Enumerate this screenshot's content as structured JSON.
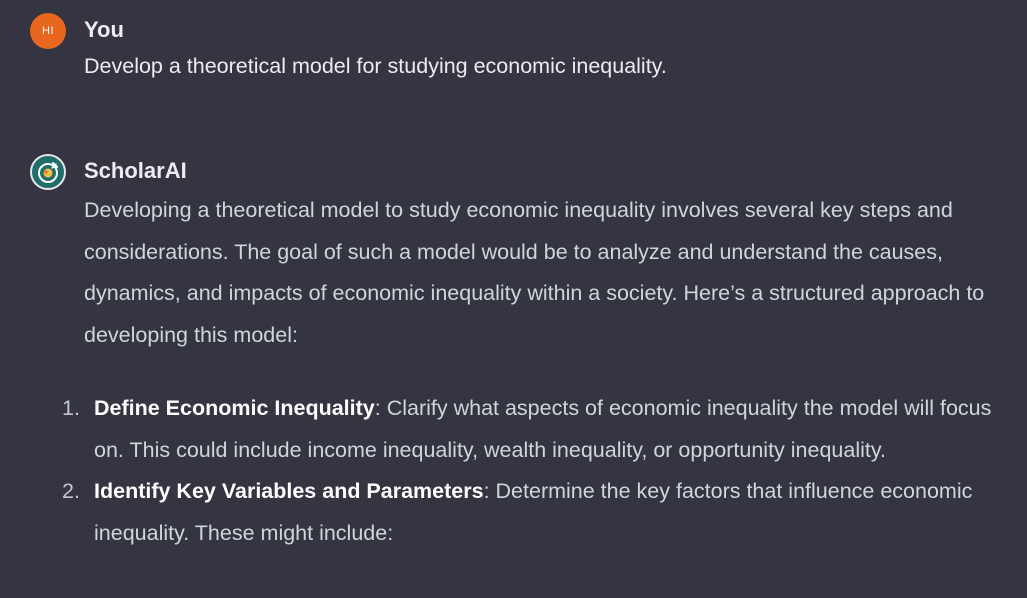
{
  "colors": {
    "background": "#343541",
    "user_avatar": "#e8661e",
    "bot_avatar": "#1f6e6c",
    "text": "#d1d5db",
    "heading": "#ececf1"
  },
  "user_message": {
    "avatar_initials": "HI",
    "author": "You",
    "text": "Develop a theoretical model for studying economic inequality."
  },
  "assistant_message": {
    "avatar_icon": "scholar-flask-icon",
    "author": "ScholarAI",
    "intro": "Developing a theoretical model to study economic inequality involves several key steps and considerations. The goal of such a model would be to analyze and understand the causes, dynamics, and impacts of economic inequality within a society. Here’s a structured approach to developing this model:",
    "list": [
      {
        "number": "1.",
        "title": "Define Economic Inequality",
        "body": ": Clarify what aspects of economic inequality the model will focus on. This could include income inequality, wealth inequality, or opportunity inequality."
      },
      {
        "number": "2.",
        "title": "Identify Key Variables and Parameters",
        "body": ": Determine the key factors that influence economic inequality. These might include:"
      }
    ]
  }
}
